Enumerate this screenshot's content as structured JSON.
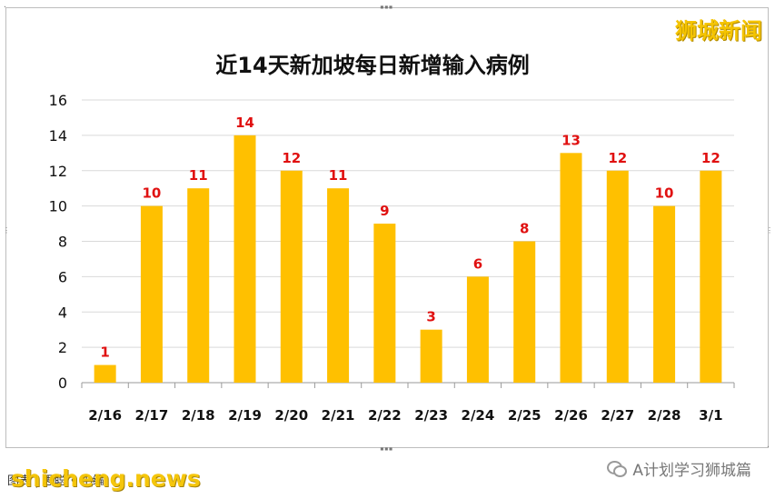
{
  "brand": "狮城新闻",
  "chart_data": {
    "type": "bar",
    "title": "近14天新加坡每日新增输入病例",
    "categories": [
      "2/16",
      "2/17",
      "2/18",
      "2/19",
      "2/20",
      "2/21",
      "2/22",
      "2/23",
      "2/24",
      "2/25",
      "2/26",
      "2/27",
      "2/28",
      "3/1"
    ],
    "values": [
      1,
      10,
      11,
      14,
      12,
      11,
      9,
      3,
      6,
      8,
      13,
      12,
      10,
      12
    ],
    "data_labels": [
      "1",
      "10",
      "11",
      "14",
      "12",
      "11",
      "9",
      "3",
      "6",
      "8",
      "13",
      "12",
      "10",
      "12"
    ],
    "ylim": [
      0,
      16
    ],
    "yticks": [
      0,
      2,
      4,
      6,
      8,
      10,
      12,
      14,
      16
    ],
    "xlabel": "",
    "ylabel": "",
    "grid": true,
    "bar_color": "#FFC000",
    "label_color": "#E01010"
  },
  "footer": {
    "left_text": "图表 | 思聪 • 小编",
    "watermark": "shicheng.news",
    "account": "A计划学习狮城篇",
    "account_icon": "wechat-icon"
  }
}
